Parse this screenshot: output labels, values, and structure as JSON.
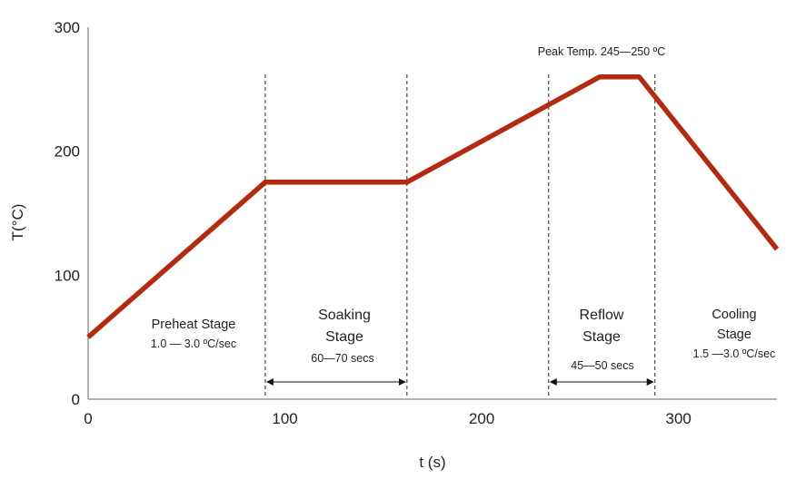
{
  "chart_data": {
    "type": "line",
    "xlabel": "t (s)",
    "ylabel": "T(°C)",
    "xlim": [
      0,
      350
    ],
    "ylim": [
      0,
      300
    ],
    "x_ticks": [
      {
        "value": 0,
        "label": "0"
      },
      {
        "value": 100,
        "label": "100"
      },
      {
        "value": 200,
        "label": "200"
      },
      {
        "value": 300,
        "label": "300"
      }
    ],
    "y_ticks": [
      {
        "value": 0,
        "label": "0"
      },
      {
        "value": 100,
        "label": "100"
      },
      {
        "value": 200,
        "label": "200"
      },
      {
        "value": 300,
        "label": "300"
      }
    ],
    "grid": false,
    "series": [
      {
        "color": "#b22a10",
        "points": [
          {
            "x": 0,
            "y": 50
          },
          {
            "x": 90,
            "y": 175
          },
          {
            "x": 162,
            "y": 175
          },
          {
            "x": 260,
            "y": 260
          },
          {
            "x": 280,
            "y": 260
          },
          {
            "x": 350,
            "y": 121
          }
        ]
      }
    ],
    "stage_boundaries": [
      90,
      162,
      234,
      288
    ],
    "annotations": {
      "preheat": {
        "title": "Preheat Stage",
        "rate": "1.0 — 3.0 ºC/sec"
      },
      "soaking": {
        "title_line1": "Soaking",
        "title_line2": "Stage",
        "duration": "60—70 secs",
        "span": [
          90,
          162
        ]
      },
      "reflow": {
        "title_line1": "Reflow",
        "title_line2": "Stage",
        "duration": "45—50 secs",
        "span": [
          234,
          288
        ]
      },
      "cooling": {
        "title_line1": "Cooling",
        "title_line2": "Stage",
        "rate": "1.5 —3.0 ºC/sec"
      },
      "peak": "Peak Temp. 245—250 ºC"
    }
  }
}
